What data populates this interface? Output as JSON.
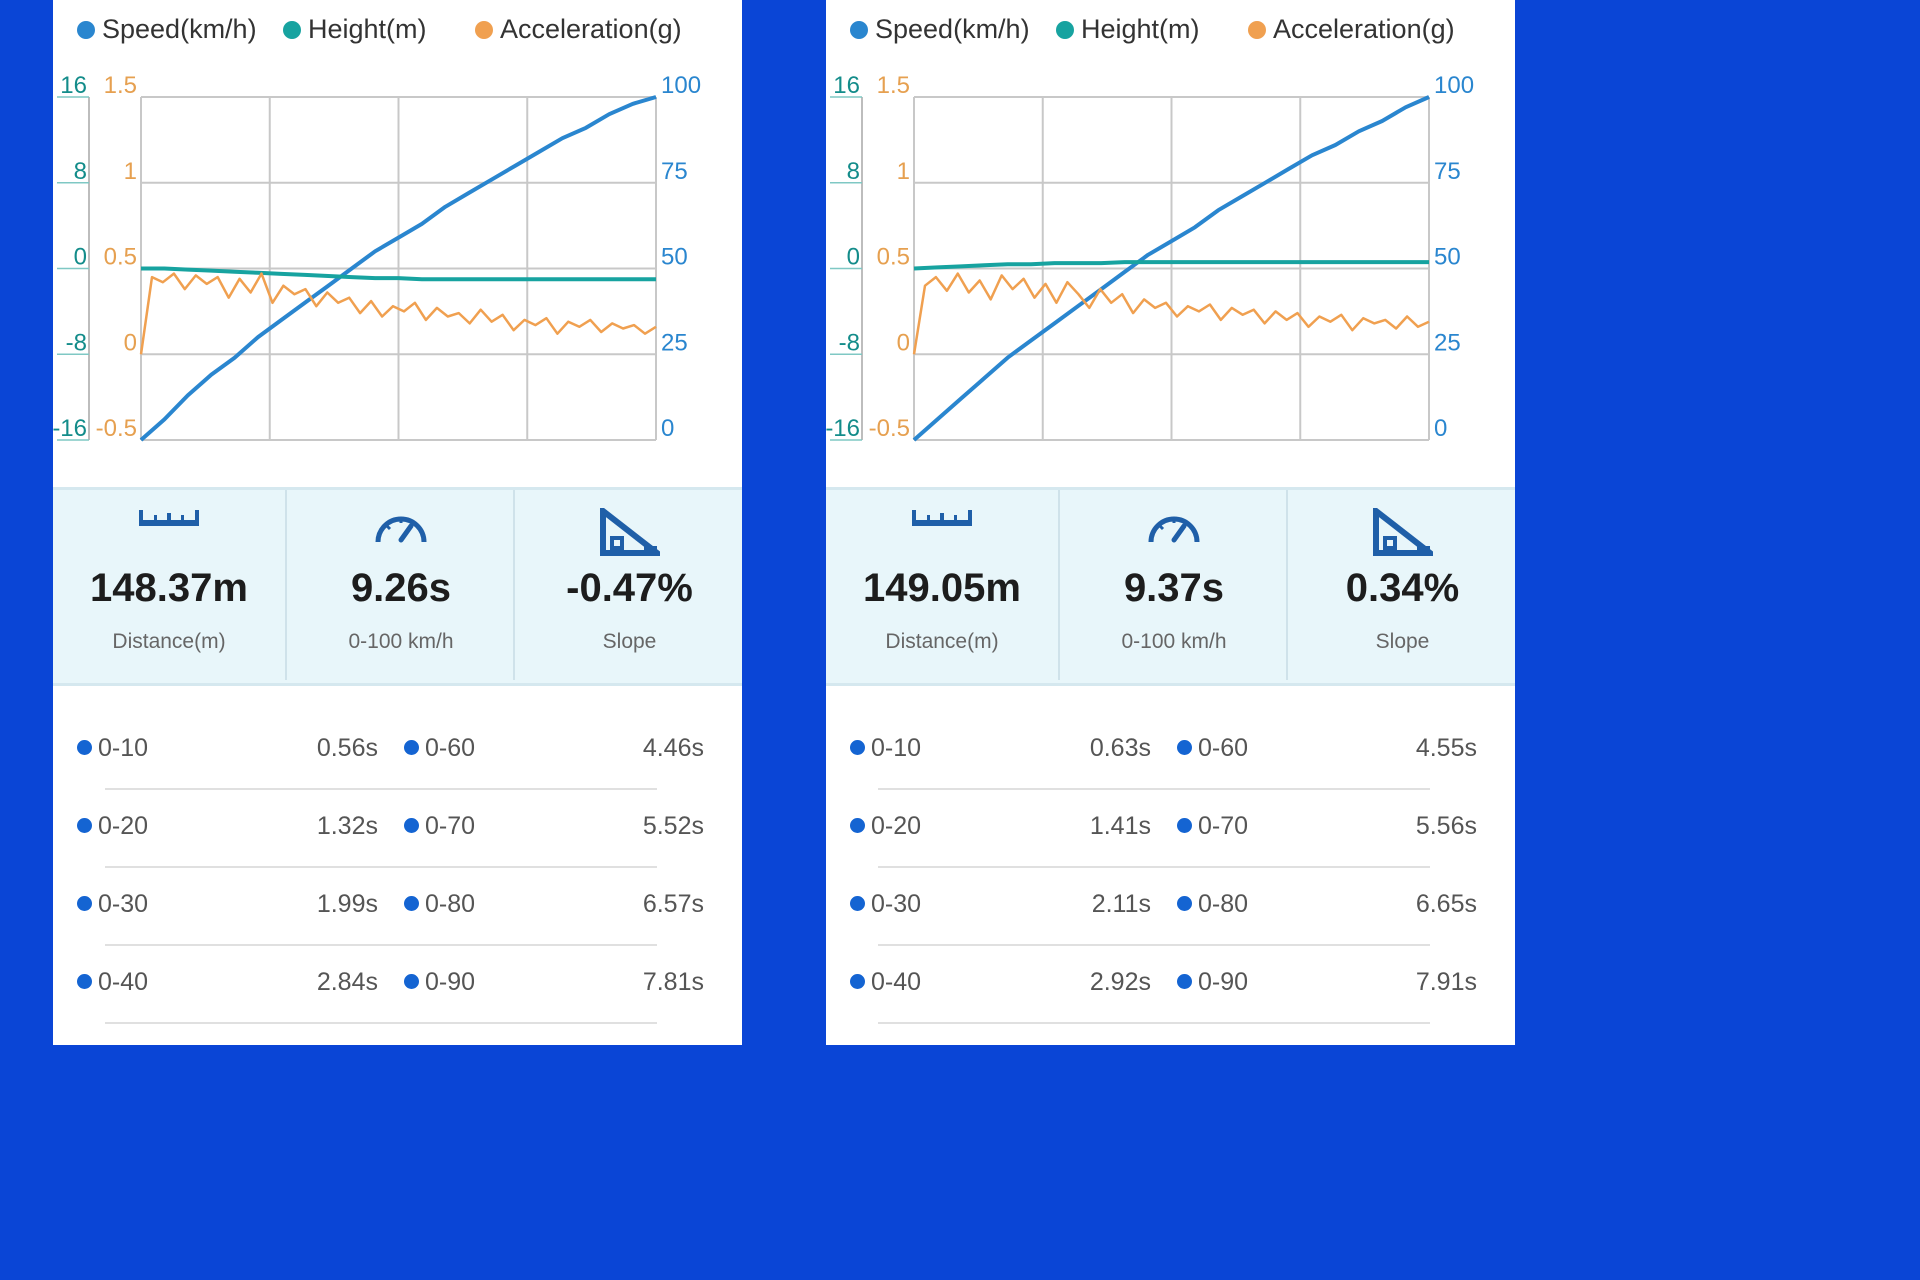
{
  "colors": {
    "background": "#0a45d6",
    "speed": "#2a86cf",
    "height": "#17a3a0",
    "acceleration": "#f0a050",
    "stats_bg": "#e8f6fa",
    "bullet": "#1464d2"
  },
  "icons": [
    "ruler-icon",
    "speedometer-icon",
    "slope-icon"
  ],
  "panels": [
    {
      "legend": [
        "Speed(km/h)",
        "Height(m)",
        "Acceleration(g)"
      ],
      "axes": {
        "height_ticks": [
          "16",
          "8",
          "0",
          "-8",
          "-16"
        ],
        "accel_ticks": [
          "1.5",
          "1",
          "0.5",
          "0",
          "-0.5"
        ],
        "speed_ticks": [
          "100",
          "75",
          "50",
          "25",
          "0"
        ]
      },
      "stats": [
        {
          "value": "148.37m",
          "label": "Distance(m)"
        },
        {
          "value": "9.26s",
          "label": "0-100 km/h"
        },
        {
          "value": "-0.47%",
          "label": "Slope"
        }
      ],
      "splits": [
        {
          "a_label": "0-10",
          "a_value": "0.56s",
          "b_label": "0-60",
          "b_value": "4.46s"
        },
        {
          "a_label": "0-20",
          "a_value": "1.32s",
          "b_label": "0-70",
          "b_value": "5.52s"
        },
        {
          "a_label": "0-30",
          "a_value": "1.99s",
          "b_label": "0-80",
          "b_value": "6.57s"
        },
        {
          "a_label": "0-40",
          "a_value": "2.84s",
          "b_label": "0-90",
          "b_value": "7.81s"
        }
      ]
    },
    {
      "legend": [
        "Speed(km/h)",
        "Height(m)",
        "Acceleration(g)"
      ],
      "axes": {
        "height_ticks": [
          "16",
          "8",
          "0",
          "-8",
          "-16"
        ],
        "accel_ticks": [
          "1.5",
          "1",
          "0.5",
          "0",
          "-0.5"
        ],
        "speed_ticks": [
          "100",
          "75",
          "50",
          "25",
          "0"
        ]
      },
      "stats": [
        {
          "value": "149.05m",
          "label": "Distance(m)"
        },
        {
          "value": "9.37s",
          "label": "0-100 km/h"
        },
        {
          "value": "0.34%",
          "label": "Slope"
        }
      ],
      "splits": [
        {
          "a_label": "0-10",
          "a_value": "0.63s",
          "b_label": "0-60",
          "b_value": "4.55s"
        },
        {
          "a_label": "0-20",
          "a_value": "1.41s",
          "b_label": "0-70",
          "b_value": "5.56s"
        },
        {
          "a_label": "0-30",
          "a_value": "2.11s",
          "b_label": "0-80",
          "b_value": "6.65s"
        },
        {
          "a_label": "0-40",
          "a_value": "2.92s",
          "b_label": "0-90",
          "b_value": "7.91s"
        }
      ]
    }
  ],
  "chart_data": [
    {
      "type": "line",
      "title": "",
      "grid": true,
      "legend_position": "top",
      "axes": [
        {
          "name": "Height(m)",
          "side": "left-outer",
          "range": [
            -16,
            16
          ]
        },
        {
          "name": "Acceleration(g)",
          "side": "left-inner",
          "range": [
            -0.5,
            1.5
          ]
        },
        {
          "name": "Speed(km/h)",
          "side": "right",
          "range": [
            0,
            100
          ]
        }
      ],
      "series": [
        {
          "name": "Speed(km/h)",
          "axis": "Speed(km/h)",
          "y": [
            0,
            6,
            13,
            19,
            24,
            30,
            35,
            40,
            45,
            50,
            55,
            59,
            63,
            68,
            72,
            76,
            80,
            84,
            88,
            91,
            95,
            98,
            100
          ]
        },
        {
          "name": "Height(m)",
          "axis": "Height(m)",
          "y": [
            0,
            0,
            -0.1,
            -0.2,
            -0.3,
            -0.4,
            -0.5,
            -0.6,
            -0.7,
            -0.8,
            -0.9,
            -0.9,
            -1,
            -1,
            -1,
            -1,
            -1,
            -1,
            -1,
            -1,
            -1,
            -1,
            -1
          ]
        },
        {
          "name": "Acceleration(g)",
          "axis": "Acceleration(g)",
          "y": [
            0,
            0.45,
            0.42,
            0.47,
            0.38,
            0.46,
            0.41,
            0.45,
            0.33,
            0.44,
            0.36,
            0.47,
            0.3,
            0.4,
            0.35,
            0.38,
            0.28,
            0.36,
            0.3,
            0.33,
            0.24,
            0.31,
            0.22,
            0.28,
            0.25,
            0.3,
            0.2,
            0.27,
            0.22,
            0.24,
            0.18,
            0.26,
            0.19,
            0.23,
            0.14,
            0.2,
            0.17,
            0.21,
            0.12,
            0.19,
            0.16,
            0.2,
            0.13,
            0.18,
            0.15,
            0.17,
            0.12,
            0.16
          ]
        }
      ]
    },
    {
      "type": "line",
      "title": "",
      "grid": true,
      "legend_position": "top",
      "axes": [
        {
          "name": "Height(m)",
          "side": "left-outer",
          "range": [
            -16,
            16
          ]
        },
        {
          "name": "Acceleration(g)",
          "side": "left-inner",
          "range": [
            -0.5,
            1.5
          ]
        },
        {
          "name": "Speed(km/h)",
          "side": "right",
          "range": [
            0,
            100
          ]
        }
      ],
      "series": [
        {
          "name": "Speed(km/h)",
          "axis": "Speed(km/h)",
          "y": [
            0,
            6,
            12,
            18,
            24,
            29,
            34,
            39,
            44,
            49,
            54,
            58,
            62,
            67,
            71,
            75,
            79,
            83,
            86,
            90,
            93,
            97,
            100
          ]
        },
        {
          "name": "Height(m)",
          "axis": "Height(m)",
          "y": [
            0,
            0.1,
            0.2,
            0.3,
            0.4,
            0.4,
            0.5,
            0.5,
            0.5,
            0.6,
            0.6,
            0.6,
            0.6,
            0.6,
            0.6,
            0.6,
            0.6,
            0.6,
            0.6,
            0.6,
            0.6,
            0.6,
            0.6
          ]
        },
        {
          "name": "Acceleration(g)",
          "axis": "Acceleration(g)",
          "y": [
            0,
            0.4,
            0.45,
            0.37,
            0.47,
            0.36,
            0.43,
            0.32,
            0.46,
            0.38,
            0.44,
            0.33,
            0.41,
            0.3,
            0.42,
            0.35,
            0.27,
            0.38,
            0.3,
            0.35,
            0.24,
            0.32,
            0.27,
            0.3,
            0.22,
            0.28,
            0.25,
            0.29,
            0.2,
            0.27,
            0.23,
            0.26,
            0.18,
            0.25,
            0.2,
            0.24,
            0.16,
            0.22,
            0.19,
            0.23,
            0.14,
            0.21,
            0.18,
            0.2,
            0.15,
            0.22,
            0.16,
            0.19
          ]
        }
      ]
    }
  ]
}
